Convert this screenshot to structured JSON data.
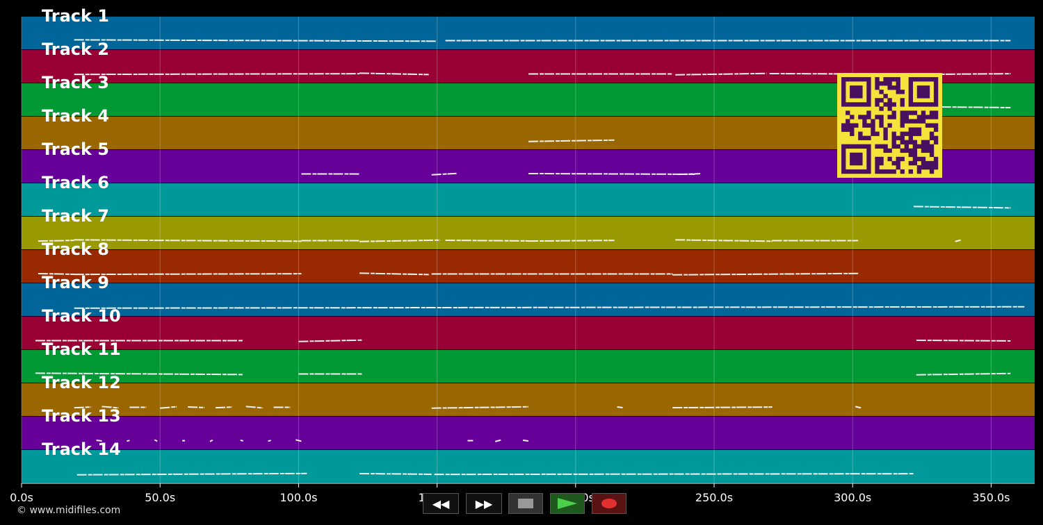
{
  "tracks": [
    {
      "label": "Track 1",
      "color": "#006699"
    },
    {
      "label": "Track 2",
      "color": "#990033"
    },
    {
      "label": "Track 3",
      "color": "#009933"
    },
    {
      "label": "Track 4",
      "color": "#996600"
    },
    {
      "label": "Track 5",
      "color": "#660099"
    },
    {
      "label": "Track 6",
      "color": "#009999"
    },
    {
      "label": "Track 7",
      "color": "#999900"
    },
    {
      "label": "Track 8",
      "color": "#992900"
    },
    {
      "label": "Track 9",
      "color": "#006699"
    },
    {
      "label": "Track 10",
      "color": "#990033"
    },
    {
      "label": "Track 11",
      "color": "#009933"
    },
    {
      "label": "Track 12",
      "color": "#996600"
    },
    {
      "label": "Track 13",
      "color": "#660099"
    },
    {
      "label": "Track 14",
      "color": "#009999"
    }
  ],
  "timeline": {
    "ticks": [
      {
        "t": 0,
        "label": "0.0s"
      },
      {
        "t": 50,
        "label": "50.0s"
      },
      {
        "t": 100,
        "label": "100.0s"
      },
      {
        "t": 150,
        "label": "150.0s"
      },
      {
        "t": 200,
        "label": "200.0s"
      },
      {
        "t": 250,
        "label": "250.0s"
      },
      {
        "t": 300,
        "label": "300.0s"
      },
      {
        "t": 350,
        "label": "350.0s"
      }
    ]
  },
  "notes": [
    {
      "track": 0,
      "segments": [
        [
          19,
          150
        ],
        [
          153,
          357
        ]
      ]
    },
    {
      "track": 1,
      "segments": [
        [
          19,
          122
        ],
        [
          122,
          147
        ],
        [
          183,
          235
        ],
        [
          236,
          269
        ],
        [
          270,
          322
        ],
        [
          322,
          357
        ]
      ]
    },
    {
      "track": 2,
      "segments": [
        [
          332,
          357
        ]
      ]
    },
    {
      "track": 3,
      "segments": [
        [
          183,
          214
        ]
      ]
    },
    {
      "track": 4,
      "segments": [
        [
          101,
          122
        ],
        [
          148,
          157
        ],
        [
          183,
          243
        ],
        [
          237,
          245
        ]
      ]
    },
    {
      "track": 5,
      "segments": [
        [
          322,
          357
        ]
      ]
    },
    {
      "track": 6,
      "segments": [
        [
          6,
          19
        ],
        [
          19,
          101
        ],
        [
          101,
          122
        ],
        [
          122,
          151
        ],
        [
          153,
          183
        ],
        [
          183,
          214
        ],
        [
          236,
          271
        ],
        [
          271,
          302
        ],
        [
          337,
          339
        ]
      ]
    },
    {
      "track": 7,
      "segments": [
        [
          6,
          19
        ],
        [
          19,
          101
        ],
        [
          122,
          147
        ],
        [
          148,
          235
        ],
        [
          235,
          302
        ]
      ]
    },
    {
      "track": 8,
      "segments": [
        [
          19,
          362
        ]
      ]
    },
    {
      "track": 9,
      "segments": [
        [
          5,
          80
        ],
        [
          100,
          123
        ],
        [
          323,
          357
        ]
      ]
    },
    {
      "track": 10,
      "segments": [
        [
          5,
          80
        ],
        [
          100,
          123
        ],
        [
          323,
          357
        ]
      ]
    },
    {
      "track": 11,
      "segments": [
        [
          19,
          25
        ],
        [
          29,
          35
        ],
        [
          39,
          45
        ],
        [
          50,
          56
        ],
        [
          60,
          66
        ],
        [
          70,
          76
        ],
        [
          81,
          87
        ],
        [
          91,
          97
        ],
        [
          148,
          183
        ],
        [
          215,
          217
        ],
        [
          235,
          271
        ],
        [
          301,
          303
        ]
      ]
    },
    {
      "track": 12,
      "segments": [
        [
          27,
          29
        ],
        [
          38,
          39
        ],
        [
          48,
          49
        ],
        [
          58,
          59
        ],
        [
          68,
          69
        ],
        [
          79,
          80
        ],
        [
          89,
          90
        ],
        [
          99,
          101
        ],
        [
          161,
          163
        ],
        [
          171,
          173
        ],
        [
          181,
          183
        ]
      ]
    },
    {
      "track": 13,
      "segments": [
        [
          20,
          103
        ],
        [
          122,
          148
        ],
        [
          149,
          322
        ]
      ]
    }
  ],
  "transport": {
    "rewind_label": "◀◀",
    "ffwd_label": "▶▶"
  },
  "qr": {
    "bg": "#f5e23a",
    "fg": "#4a1060"
  },
  "footer": {
    "copyright": "© www.midifiles.com"
  }
}
